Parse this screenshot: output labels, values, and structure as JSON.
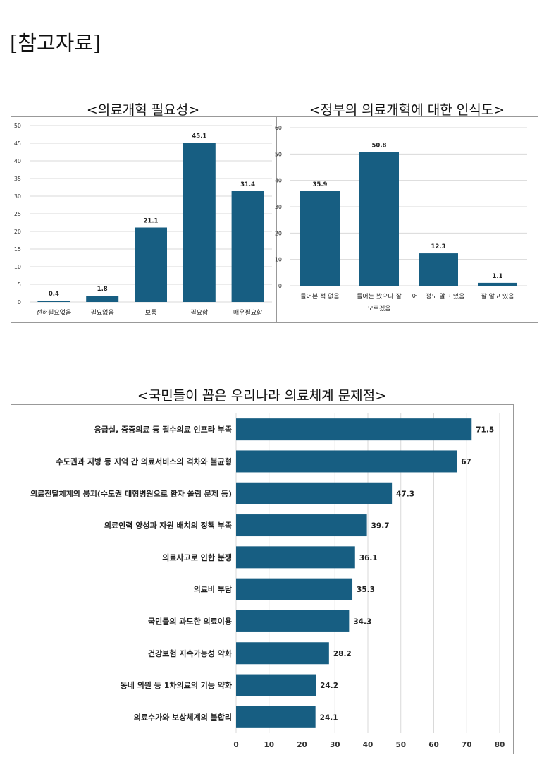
{
  "page_title": "[참고자료]",
  "bar_color": "#175e82",
  "chart_data": [
    {
      "type": "bar",
      "title": "<의료개혁 필요성>",
      "categories": [
        "전혀필요없음",
        "필요없음",
        "보통",
        "필요함",
        "매우필요함"
      ],
      "values": [
        0.4,
        1.8,
        21.1,
        45.1,
        31.4
      ],
      "ylim": [
        0,
        50
      ],
      "yticks": [
        0,
        5,
        10,
        15,
        20,
        25,
        30,
        35,
        40,
        45,
        50
      ],
      "grid": true
    },
    {
      "type": "bar",
      "title": "<정부의 의료개혁에 대한 인식도>",
      "categories": [
        [
          "들어본 적 없음"
        ],
        [
          "들어는 봤으나 잘",
          "모르겠음"
        ],
        [
          "어느 정도 알고 있음"
        ],
        [
          "잘 알고 있음"
        ]
      ],
      "values": [
        35.9,
        50.8,
        12.3,
        1.1
      ],
      "ylim": [
        0,
        60
      ],
      "yticks": [
        0,
        10,
        20,
        30,
        40,
        50,
        60
      ],
      "grid": true
    },
    {
      "type": "bar",
      "orientation": "horizontal",
      "title": "<국민들이 꼽은 우리나라 의료체계 문제점>",
      "categories": [
        "응급실, 중증의료 등 필수의료 인프라 부족",
        "수도권과 지방 등 지역 간 의료서비스의 격차와 불균형",
        "의료전달체계의 붕괴(수도권 대형병원으로 환자 쏠림 문제 등)",
        "의료인력 양성과 자원 배치의 정책 부족",
        "의료사고로 인한 분쟁",
        "의료비 부담",
        "국민들의 과도한 의료이용",
        "건강보험 지속가능성 악화",
        "동네 의원 등 1차의료의 기능 약화",
        "의료수가와 보상체계의 불합리"
      ],
      "values": [
        71.5,
        67,
        47.3,
        39.7,
        36.1,
        35.3,
        34.3,
        28.2,
        24.2,
        24.1
      ],
      "xlim": [
        0,
        80
      ],
      "xticks": [
        0,
        10,
        20,
        30,
        40,
        50,
        60,
        70,
        80
      ],
      "grid": true
    }
  ]
}
